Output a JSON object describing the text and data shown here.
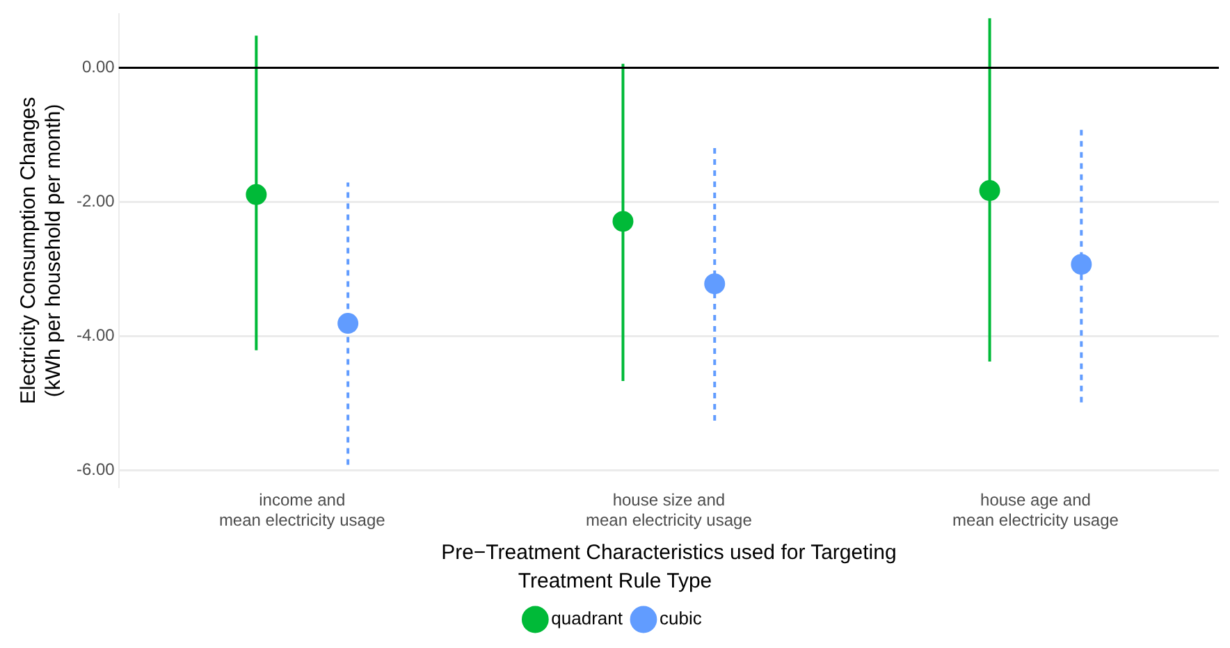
{
  "chart_data": {
    "type": "scatter",
    "categories": [
      "income and\nmean electricity usage",
      "house size and\nmean electricity usage",
      "house age and\nmean electricity usage"
    ],
    "series": [
      {
        "name": "quadrant",
        "color": "#00ba38",
        "line_style": "solid",
        "values": [
          -1.89,
          -2.29,
          -1.83
        ],
        "errors": [
          [
            -4.21,
            0.48
          ],
          [
            -4.67,
            0.06
          ],
          [
            -4.38,
            0.74
          ]
        ]
      },
      {
        "name": "cubic",
        "color": "#619cff",
        "line_style": "dashed",
        "values": [
          -3.81,
          -3.22,
          -2.93
        ],
        "errors": [
          [
            -5.92,
            -1.71
          ],
          [
            -5.26,
            -1.16
          ],
          [
            -4.99,
            -0.88
          ]
        ]
      }
    ],
    "xlabel": "Pre−Treatment Characteristics used for Targeting",
    "ylabel": "Electricity Consumption Changes\n(kWh per household per month)",
    "legend_title": "Treatment Rule Type",
    "ylim": [
      -6.25,
      0.8
    ],
    "yticks": [
      {
        "value": 0,
        "label": "0.00"
      },
      {
        "value": -2,
        "label": "-2.00"
      },
      {
        "value": -4,
        "label": "-4.00"
      },
      {
        "value": -6,
        "label": "-6.00"
      }
    ],
    "ref_lines": [
      {
        "axis": "y",
        "value": 0,
        "color": "#000000"
      }
    ],
    "grid": "y",
    "legend": "bottom",
    "marker": "circle"
  }
}
